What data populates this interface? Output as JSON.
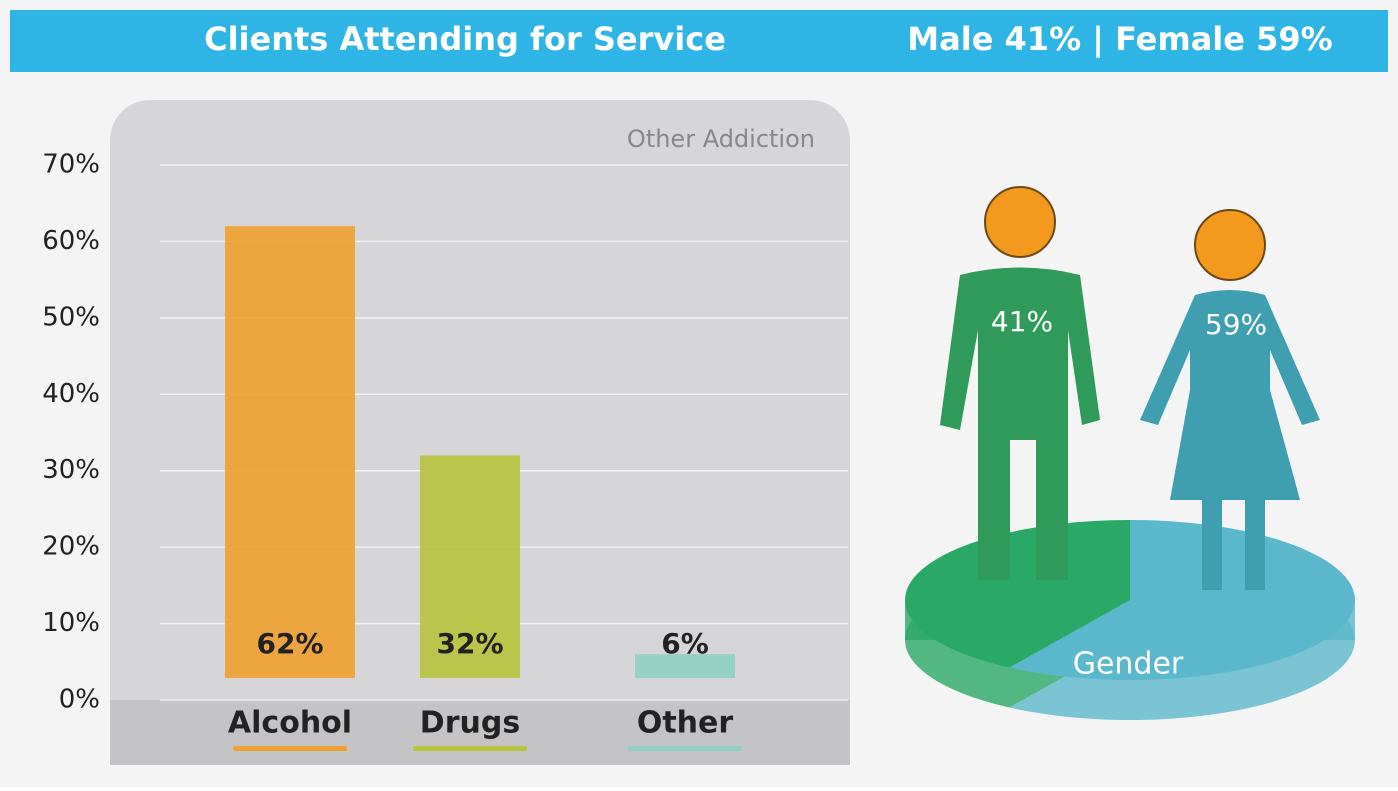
{
  "header": {
    "title": "Clients Attending for Service",
    "summary": "Male 41% | Female 59%"
  },
  "chart_data": [
    {
      "type": "bar",
      "title": "Other Addiction",
      "categories": [
        "Alcohol",
        "Drugs",
        "Other"
      ],
      "values": [
        62,
        32,
        6
      ],
      "value_labels": [
        "62%",
        "32%",
        "6%"
      ],
      "colors": [
        "#f0a030",
        "#b7c43c",
        "#8fd0c4"
      ],
      "ylim": [
        0,
        70
      ],
      "yticks": [
        {
          "value": 0,
          "label": "0%"
        },
        {
          "value": 10,
          "label": "10%"
        },
        {
          "value": 20,
          "label": "20%"
        },
        {
          "value": 30,
          "label": "30%"
        },
        {
          "value": 40,
          "label": "40%"
        },
        {
          "value": 50,
          "label": "50%"
        },
        {
          "value": 60,
          "label": "60%"
        },
        {
          "value": 70,
          "label": "70%"
        }
      ],
      "grid": true
    },
    {
      "type": "pie",
      "title": "Gender",
      "values": [
        41,
        59
      ],
      "value_labels": [
        "41%",
        "59%"
      ],
      "colors": [
        "#2aa866",
        "#5bb8cc"
      ]
    }
  ]
}
